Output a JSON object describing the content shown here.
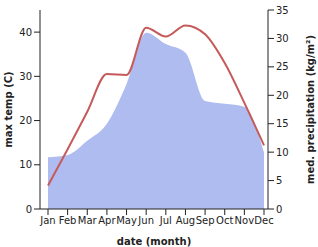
{
  "chart_data": {
    "type": "line",
    "categories": [
      "Jan",
      "Feb",
      "Mar",
      "Apr",
      "May",
      "Jun",
      "Jul",
      "Aug",
      "Sep",
      "Oct",
      "Nov",
      "Dec"
    ],
    "x_label": "date (month)",
    "y_label": "max temp (C)",
    "y2_label": "med. precipitation (kg/m²)",
    "ylim": [
      0,
      45
    ],
    "yticks": [
      0,
      10,
      20,
      30,
      40
    ],
    "y2lim": [
      0,
      35
    ],
    "y2ticks": [
      0,
      5,
      10,
      15,
      20,
      25,
      30,
      35
    ],
    "grid": false,
    "series": [
      {
        "name": "max temp",
        "type": "line",
        "color": "#c65a5a",
        "values": [
          5.3,
          13.5,
          22,
          30.5,
          30.3,
          41,
          39,
          41.5,
          39.5,
          33,
          24,
          14.4
        ]
      },
      {
        "name": "med. precipitation",
        "type": "area",
        "axis": "y2",
        "color": "#aebcf0",
        "values": [
          9.1,
          9.5,
          12,
          15,
          22,
          31,
          29,
          27.5,
          19,
          18.5,
          18,
          10
        ]
      }
    ]
  }
}
